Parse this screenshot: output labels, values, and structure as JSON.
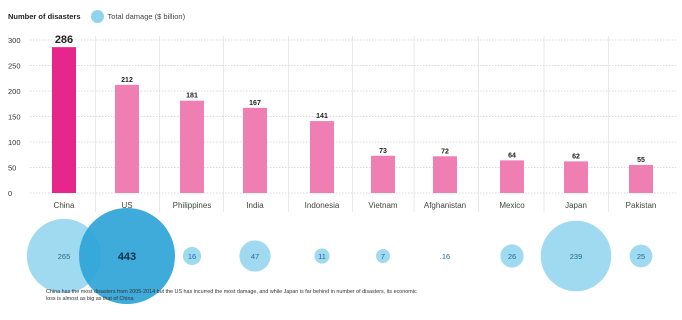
{
  "legend": {
    "number_label": "Number of disasters",
    "damage_label": "Total damage ($ billion)"
  },
  "chart_data": {
    "type": "bar",
    "categories": [
      "China",
      "US",
      "Philippines",
      "India",
      "Indonesia",
      "Vietnam",
      "Afghanistan",
      "Mexico",
      "Japan",
      "Pakistan"
    ],
    "series": [
      {
        "values": [
          286,
          212,
          181,
          167,
          141,
          73,
          72,
          64,
          62,
          55
        ]
      }
    ],
    "damage": [
      265,
      443,
      16,
      47,
      11,
      7,
      0.16,
      26,
      239,
      25
    ],
    "damage_labels": [
      "265",
      "443",
      "16",
      "47",
      "11",
      "7",
      ".16",
      "26",
      "239",
      "25"
    ],
    "ylim": [
      0,
      300
    ],
    "yticks": [
      0,
      50,
      100,
      150,
      200,
      250,
      300
    ],
    "ytick_labels": [
      "0",
      "50",
      "100",
      "150",
      "200",
      "250",
      "300"
    ],
    "grid": true,
    "colors": {
      "bar": "#ef7fb2",
      "bar_highlight": "#e6268a",
      "bubble": "#8fd3ee",
      "bubble_highlight": "#2ea4d8",
      "bubble_label": "#1f6d90",
      "bubble_label_highlight": "#0d2f47",
      "grid": "#b5b5b5"
    }
  },
  "footnote": "China has the most disasters from 2005-2014 but the US has incurred the most damage, and while Japan is far behind in number of disasters, its economic loss is almost as big as that of China"
}
